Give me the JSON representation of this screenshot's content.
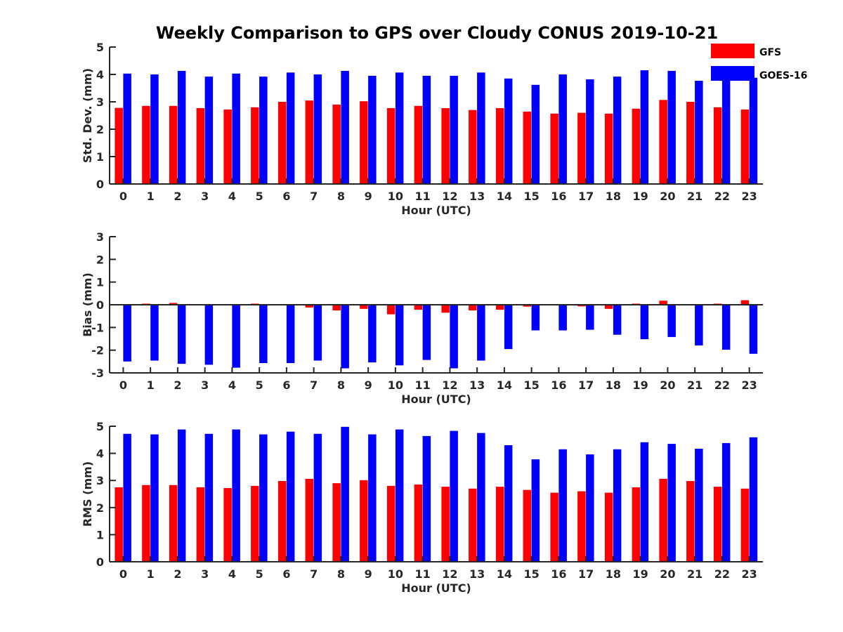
{
  "figure_title": "Weekly Comparison to GPS over Cloudy CONUS 2019-10-21",
  "colors": {
    "GFS": "#ff0000",
    "GOES-16": "#0000ff",
    "axis": "#262626"
  },
  "legend": {
    "placement": "top-right",
    "entries": [
      "GFS",
      "GOES-16"
    ]
  },
  "chart_data": [
    {
      "type": "bar",
      "title": "",
      "xlabel": "Hour (UTC)",
      "ylabel": "Std. Dev. (mm)",
      "ylim": [
        0,
        5
      ],
      "yticks": [
        0,
        1,
        2,
        3,
        4,
        5
      ],
      "categories": [
        "0",
        "1",
        "2",
        "3",
        "4",
        "5",
        "6",
        "7",
        "8",
        "9",
        "10",
        "11",
        "12",
        "13",
        "14",
        "15",
        "16",
        "17",
        "18",
        "19",
        "20",
        "21",
        "22",
        "23"
      ],
      "series": [
        {
          "name": "GFS",
          "values": [
            2.78,
            2.85,
            2.85,
            2.77,
            2.72,
            2.8,
            3.0,
            3.05,
            2.9,
            3.02,
            2.77,
            2.85,
            2.77,
            2.7,
            2.77,
            2.64,
            2.57,
            2.6,
            2.57,
            2.75,
            3.07,
            3.0,
            2.8,
            2.72
          ]
        },
        {
          "name": "GOES-16",
          "values": [
            4.03,
            4.0,
            4.13,
            3.92,
            4.03,
            3.92,
            4.07,
            4.0,
            4.13,
            3.95,
            4.07,
            3.95,
            3.95,
            4.07,
            3.85,
            3.62,
            4.0,
            3.82,
            3.92,
            4.15,
            4.13,
            3.77,
            3.92,
            3.88
          ]
        }
      ]
    },
    {
      "type": "bar",
      "title": "",
      "xlabel": "Hour (UTC)",
      "ylabel": "Bias (mm)",
      "ylim": [
        -3,
        3
      ],
      "yticks": [
        -3,
        -2,
        -1,
        0,
        1,
        2,
        3
      ],
      "categories": [
        "0",
        "1",
        "2",
        "3",
        "4",
        "5",
        "6",
        "7",
        "8",
        "9",
        "10",
        "11",
        "12",
        "13",
        "14",
        "15",
        "16",
        "17",
        "18",
        "19",
        "20",
        "21",
        "22",
        "23"
      ],
      "series": [
        {
          "name": "GFS",
          "values": [
            -0.02,
            0.05,
            0.08,
            -0.02,
            -0.02,
            0.05,
            0.02,
            -0.12,
            -0.25,
            -0.18,
            -0.42,
            -0.22,
            -0.35,
            -0.25,
            -0.22,
            -0.08,
            -0.02,
            -0.07,
            -0.18,
            0.05,
            0.18,
            -0.02,
            0.05,
            0.2
          ]
        },
        {
          "name": "GOES-16",
          "values": [
            -2.5,
            -2.46,
            -2.6,
            -2.64,
            -2.77,
            -2.57,
            -2.57,
            -2.46,
            -2.8,
            -2.54,
            -2.67,
            -2.43,
            -2.8,
            -2.46,
            -1.95,
            -1.13,
            -1.13,
            -1.1,
            -1.32,
            -1.52,
            -1.42,
            -1.79,
            -1.98,
            -2.16
          ]
        }
      ]
    },
    {
      "type": "bar",
      "title": "",
      "xlabel": "Hour (UTC)",
      "ylabel": "RMS (mm)",
      "ylim": [
        0,
        5
      ],
      "yticks": [
        0,
        1,
        2,
        3,
        4,
        5
      ],
      "categories": [
        "0",
        "1",
        "2",
        "3",
        "4",
        "5",
        "6",
        "7",
        "8",
        "9",
        "10",
        "11",
        "12",
        "13",
        "14",
        "15",
        "16",
        "17",
        "18",
        "19",
        "20",
        "21",
        "22",
        "23"
      ],
      "series": [
        {
          "name": "GFS",
          "values": [
            2.75,
            2.83,
            2.83,
            2.75,
            2.72,
            2.8,
            2.98,
            3.06,
            2.9,
            3.01,
            2.8,
            2.85,
            2.77,
            2.7,
            2.77,
            2.65,
            2.55,
            2.6,
            2.55,
            2.75,
            3.06,
            2.98,
            2.77,
            2.7
          ]
        },
        {
          "name": "GOES-16",
          "values": [
            4.72,
            4.7,
            4.88,
            4.72,
            4.88,
            4.7,
            4.8,
            4.72,
            4.98,
            4.7,
            4.88,
            4.64,
            4.83,
            4.75,
            4.3,
            3.78,
            4.15,
            3.96,
            4.15,
            4.41,
            4.35,
            4.17,
            4.38,
            4.59
          ]
        }
      ]
    }
  ]
}
